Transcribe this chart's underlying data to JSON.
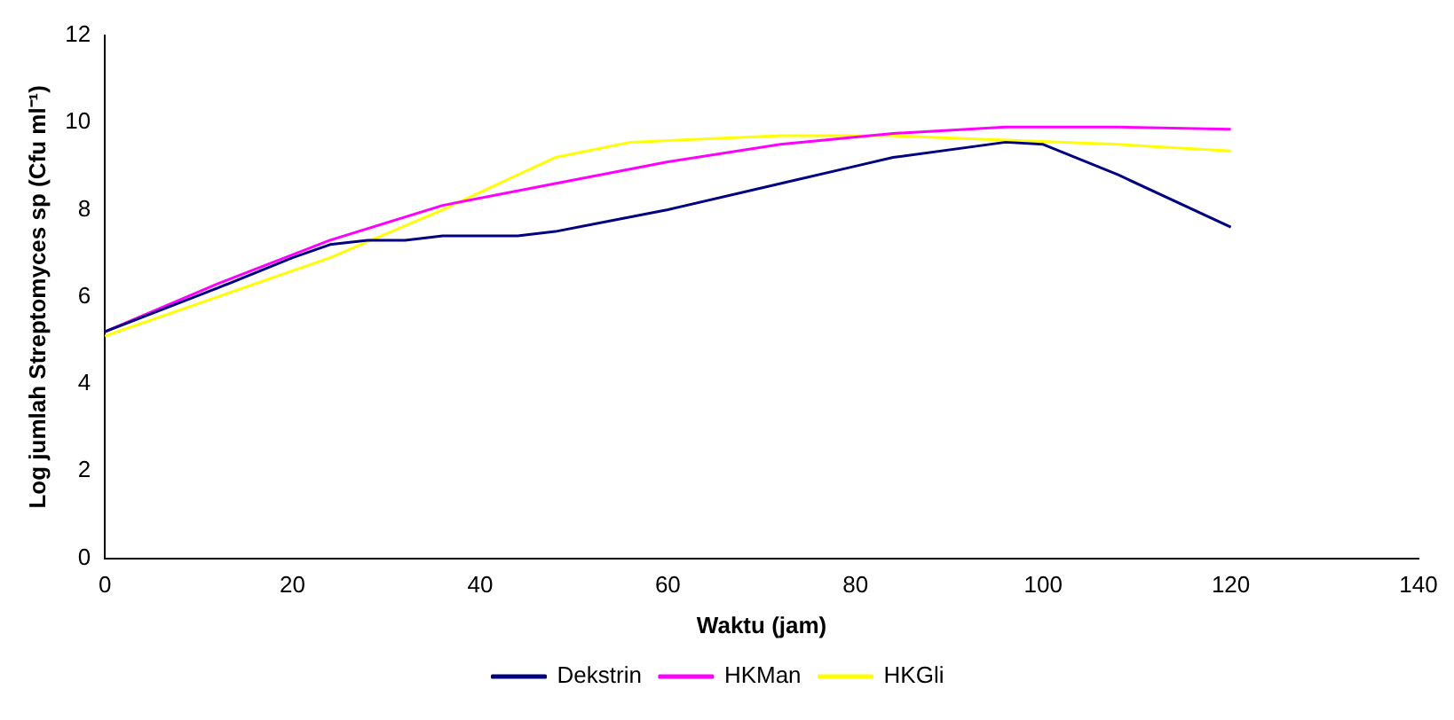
{
  "chart_data": {
    "type": "line",
    "xlabel": "Waktu (jam)",
    "ylabel": "Log jumlah Streptomyces sp (Cfu ml⁻¹)",
    "xlim": [
      0,
      140
    ],
    "xticks": [
      0,
      20,
      40,
      60,
      80,
      100,
      120,
      140
    ],
    "ylim": [
      0,
      12
    ],
    "yticks": [
      0,
      2,
      4,
      6,
      8,
      10,
      12
    ],
    "grid": false,
    "legend": "bottom",
    "marker": "none",
    "line_style": "solid",
    "series": [
      {
        "name": "Dekstrin",
        "color": "#000080",
        "x": [
          0,
          12,
          20,
          24,
          28,
          32,
          36,
          44,
          48,
          60,
          72,
          80,
          84,
          96,
          100,
          108,
          120
        ],
        "values": [
          5.2,
          6.2,
          6.9,
          7.2,
          7.3,
          7.3,
          7.4,
          7.4,
          7.5,
          8.0,
          8.6,
          9.0,
          9.2,
          9.55,
          9.5,
          8.8,
          7.6
        ]
      },
      {
        "name": "HKMan",
        "color": "#ff00ff",
        "x": [
          0,
          12,
          24,
          36,
          48,
          60,
          72,
          84,
          96,
          108,
          120
        ],
        "values": [
          5.2,
          6.3,
          7.3,
          8.1,
          8.6,
          9.1,
          9.5,
          9.75,
          9.9,
          9.9,
          9.85
        ]
      },
      {
        "name": "HKGli",
        "color": "#ffff00",
        "x": [
          0,
          12,
          24,
          36,
          40,
          44,
          48,
          56,
          72,
          84,
          96,
          108,
          120
        ],
        "values": [
          5.1,
          6.0,
          6.9,
          8.0,
          8.4,
          8.8,
          9.2,
          9.55,
          9.7,
          9.7,
          9.6,
          9.5,
          9.35
        ]
      }
    ]
  }
}
